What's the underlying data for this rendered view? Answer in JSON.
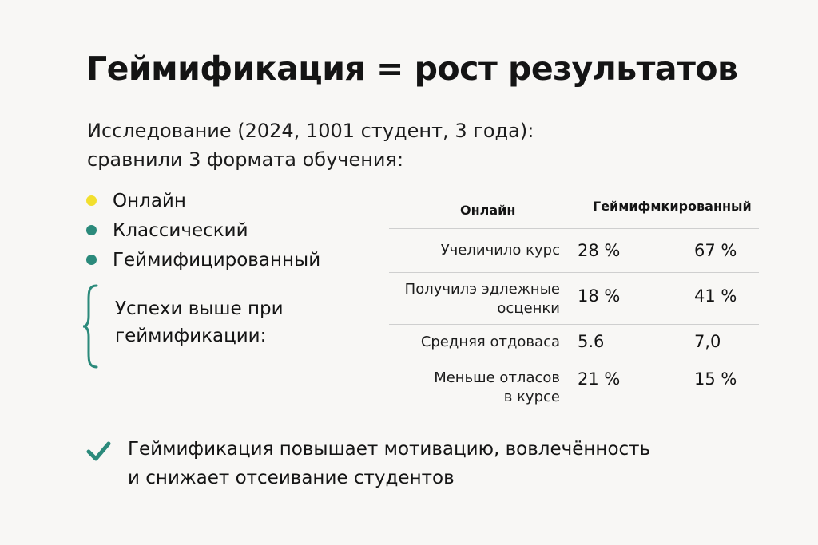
{
  "title": "Геймификация = рост результатов",
  "subtitle": {
    "line1": "Исследование (2024, 1001 студент, 3 года):",
    "line2": "сравнили 3 формата обучения:"
  },
  "legend": [
    {
      "label": "Онлайн",
      "color": "#f2df2e"
    },
    {
      "label": "Классический",
      "color": "#2b8a7b"
    },
    {
      "label": "Геймифицированный",
      "color": "#2b8a7b"
    }
  ],
  "success": {
    "line1": "Успехи выше при",
    "line2": "геймификации:"
  },
  "table": {
    "headers": {
      "online": "Онлайн",
      "gamified": "Геймифмкированный"
    },
    "rows": [
      {
        "label_line1": "Учеличило курс",
        "label_line2": "",
        "online": "28 %",
        "gamified": "67 %"
      },
      {
        "label_line1": "Получилэ эдлежные",
        "label_line2": "осценки",
        "online": "18 %",
        "gamified": "41 %"
      },
      {
        "label_line1": "Средняя отдоваса",
        "label_line2": "",
        "online": "5.6",
        "gamified": "7,0"
      },
      {
        "label_line1": "Меньше отласов",
        "label_line2": "в курсе",
        "online": "21 %",
        "gamified": "15 %"
      }
    ]
  },
  "conclusion": {
    "line1": "Геймификация повышает мотивацию, вовлечённость",
    "line2": "и снижает отсеивание студентов",
    "icon": "check-icon",
    "icon_color": "#2b8a7b"
  },
  "accent_color": "#2b8a7b"
}
